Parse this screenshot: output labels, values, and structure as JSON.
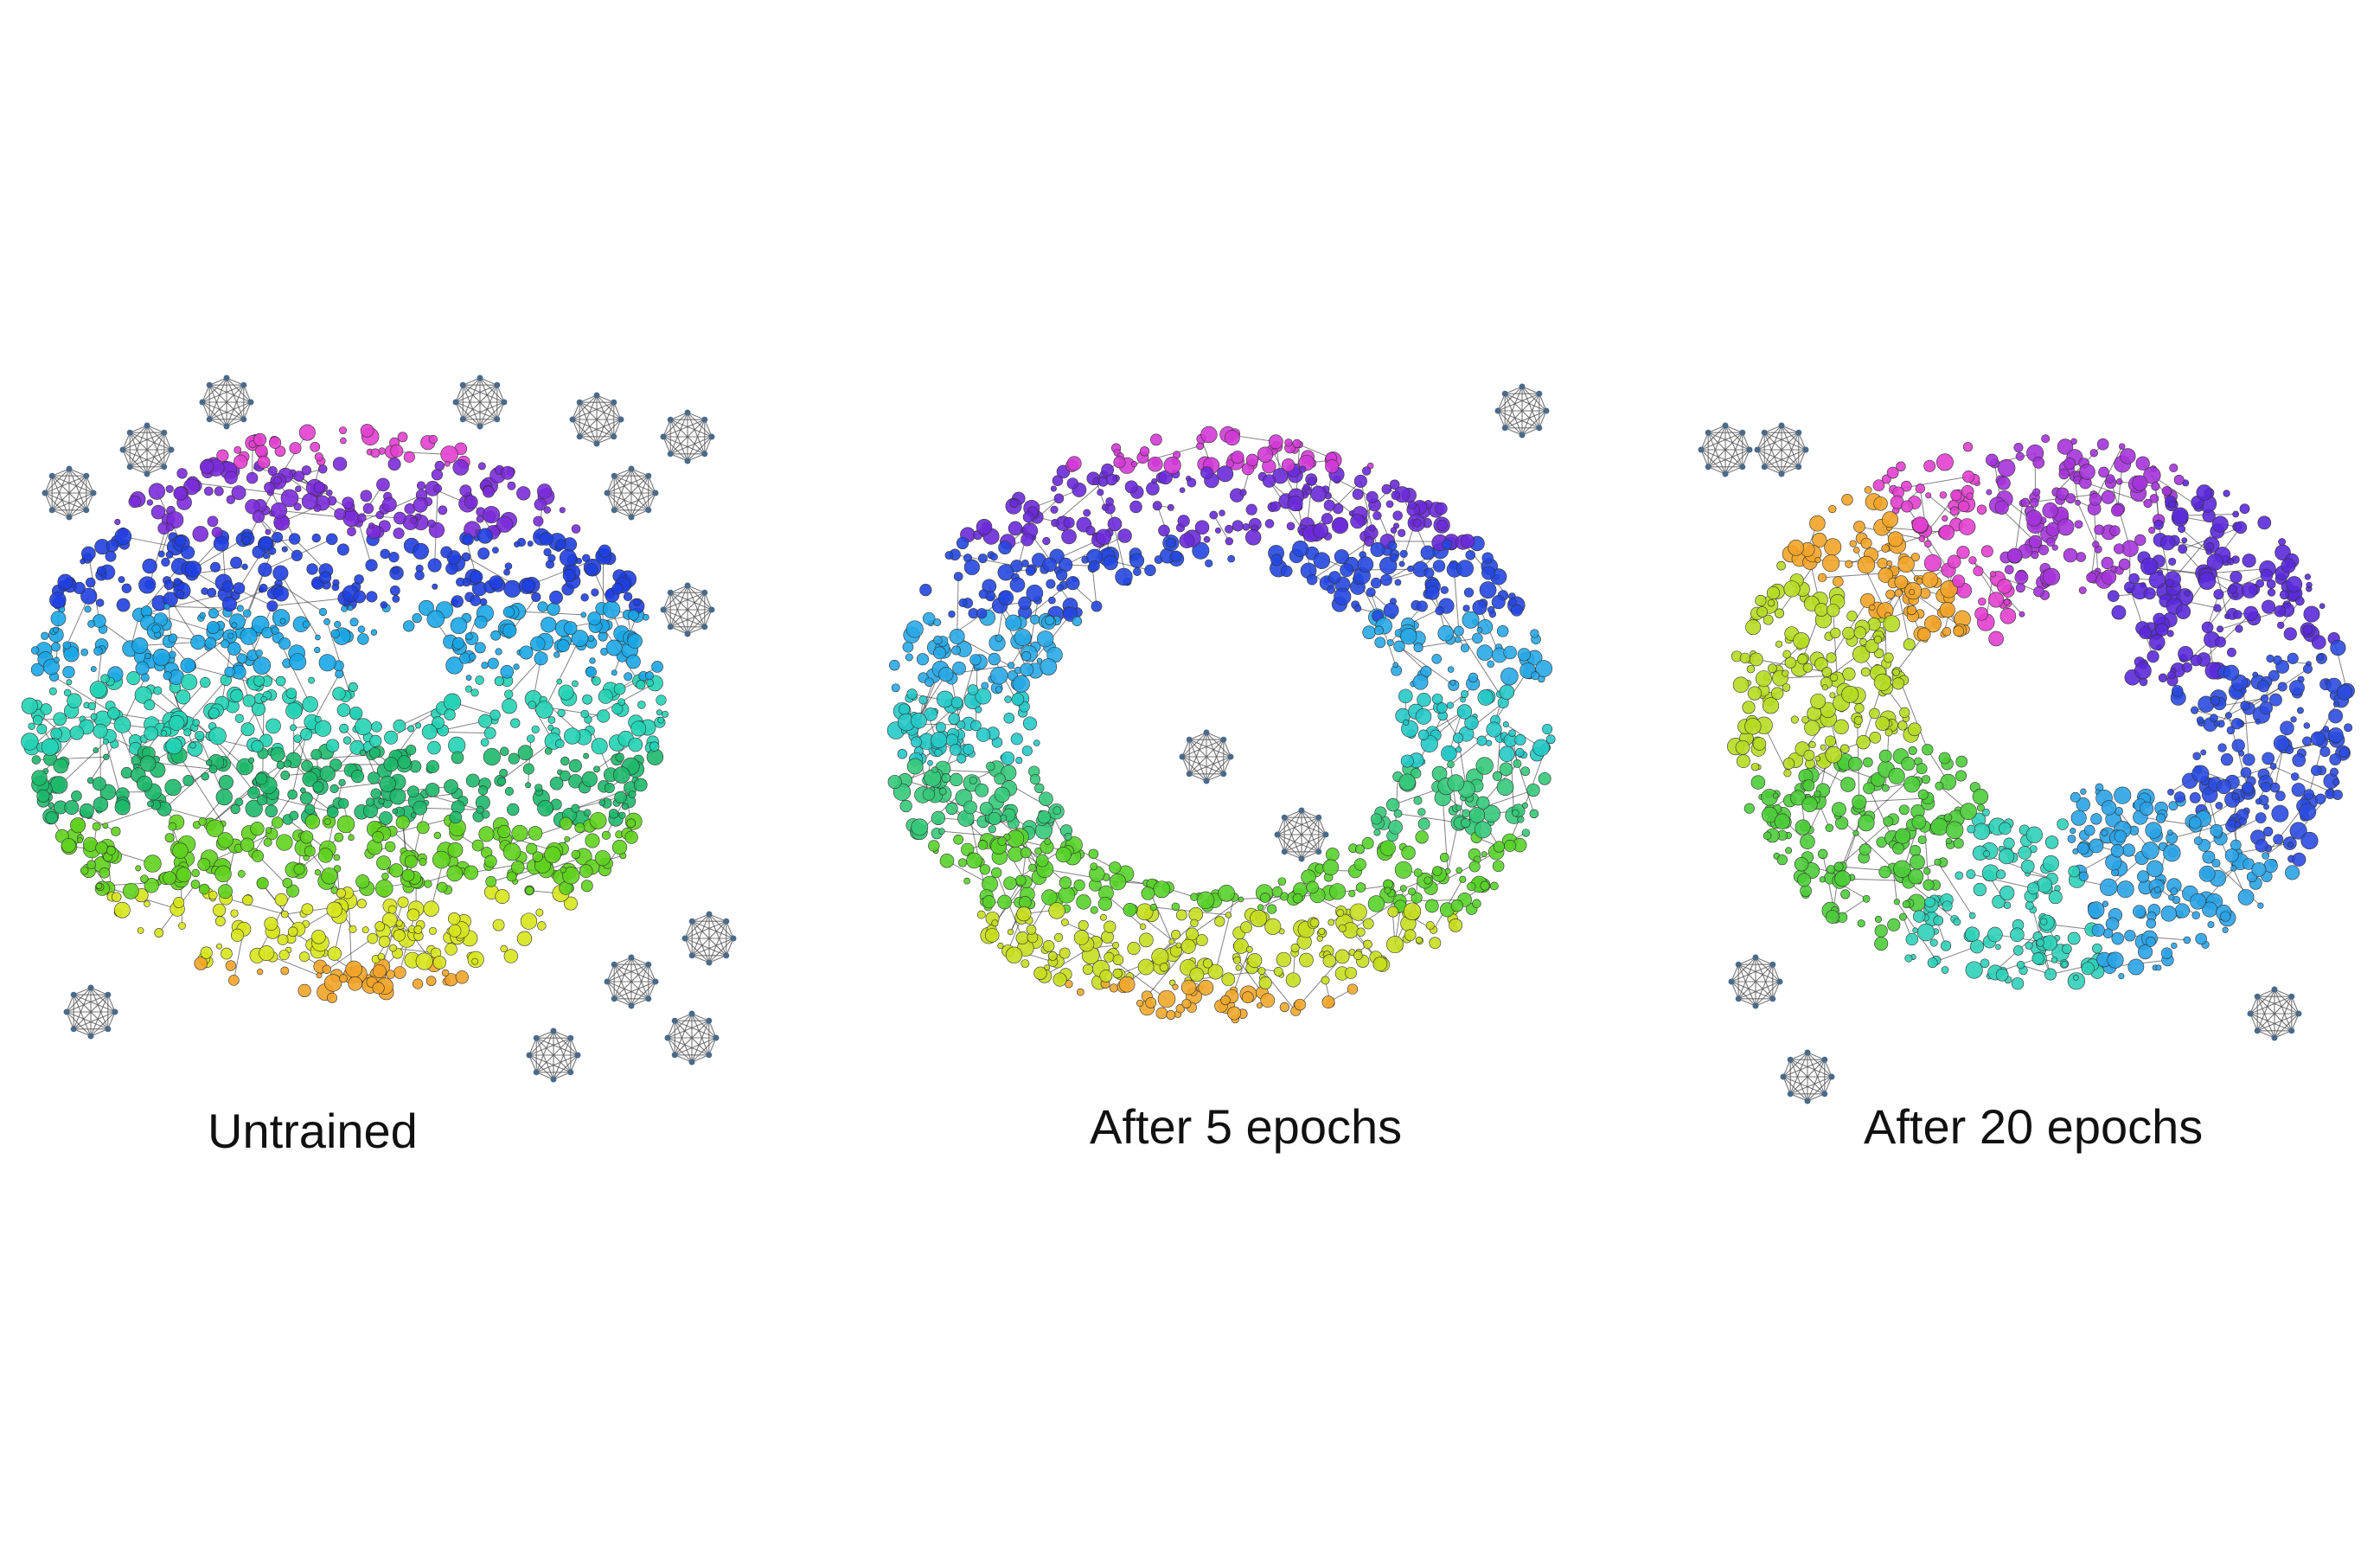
{
  "figure": {
    "panels": [
      {
        "id": "untrained",
        "caption": "Untrained",
        "shape": "filled",
        "colors": [
          "#e23fcf",
          "#7a2bd9",
          "#1f3fe0",
          "#1aa6e6",
          "#22d3b5",
          "#1db86a",
          "#5fd21e",
          "#d7e51c",
          "#f2a428"
        ],
        "small_graphs": 13
      },
      {
        "id": "after-5-epochs",
        "caption": "After 5 epochs",
        "shape": "ring",
        "colors": [
          "#d23ad6",
          "#6a2ad9",
          "#2547e0",
          "#28a9e6",
          "#25c9c8",
          "#35c97a",
          "#58d12a",
          "#c7de1f",
          "#f0a82c"
        ],
        "small_graphs": 3
      },
      {
        "id": "after-20-epochs",
        "caption": "After 20 epochs",
        "shape": "ring-holes",
        "colors": [
          "#e23fcf",
          "#a433d9",
          "#5a2ad9",
          "#2b4be0",
          "#2aa3e6",
          "#2fd0b8",
          "#4ccc3a",
          "#b6dc22",
          "#f2a428"
        ],
        "small_graphs": 5
      }
    ],
    "edge_color": "#1b1b1b",
    "small_graph_color": "#4a6a8a"
  }
}
